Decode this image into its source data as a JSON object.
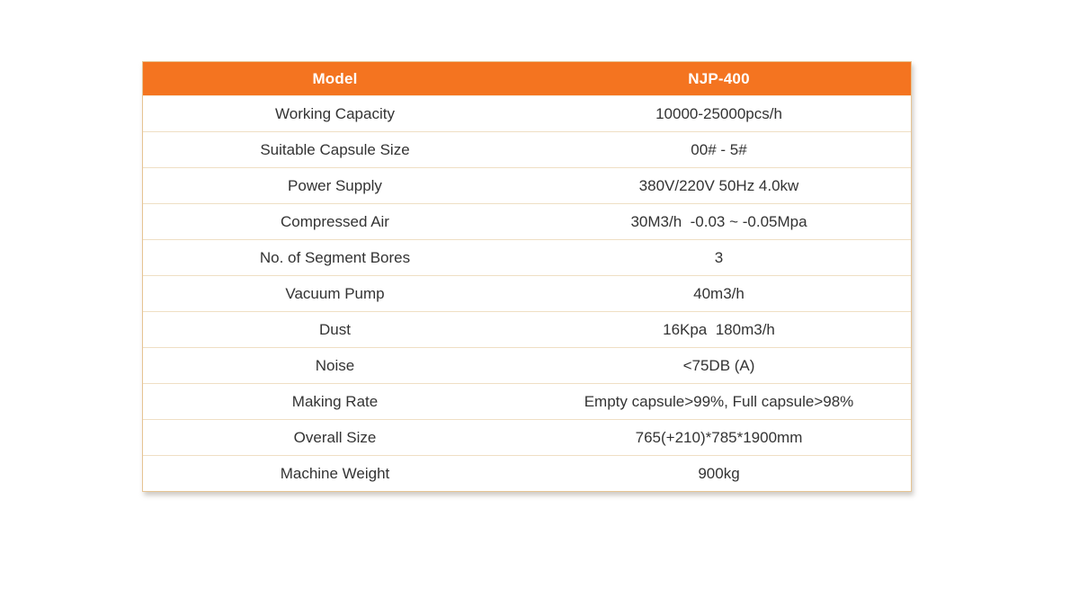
{
  "table": {
    "header": {
      "model_label": "Model",
      "model_value": "NJP-400"
    },
    "rows": [
      {
        "label": "Working Capacity",
        "value": "10000-25000pcs/h"
      },
      {
        "label": "Suitable Capsule Size",
        "value": "00# - 5#"
      },
      {
        "label": "Power Supply",
        "value": "380V/220V 50Hz 4.0kw"
      },
      {
        "label": "Compressed Air",
        "value": "30M3/h  -0.03 ~ -0.05Mpa"
      },
      {
        "label": "No. of Segment Bores",
        "value": "3"
      },
      {
        "label": "Vacuum Pump",
        "value": "40m3/h"
      },
      {
        "label": "Dust",
        "value": "16Kpa  180m3/h"
      },
      {
        "label": "Noise",
        "value": "<75DB (A)"
      },
      {
        "label": "Making Rate",
        "value": "Empty capsule>99%, Full capsule>98%"
      },
      {
        "label": "Overall Size",
        "value": "765(+210)*785*1900mm"
      },
      {
        "label": "Machine Weight",
        "value": "900kg"
      }
    ],
    "colors": {
      "header_bg": "#f47420",
      "header_text": "#ffffff",
      "body_text": "#333333",
      "row_border": "#efdfc4",
      "outer_border": "#e6c493",
      "page_bg": "#ffffff"
    }
  }
}
